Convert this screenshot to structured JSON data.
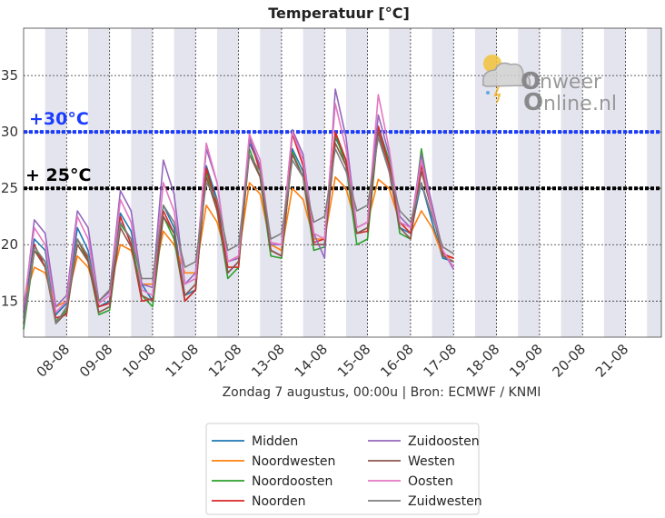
{
  "chart_data": {
    "type": "line",
    "title": "Temperatuur [°C]",
    "xlabel": "Zondag 7 augustus, 00:00u  | Bron: ECMWF / KNMI",
    "ylabel": "",
    "ylim": [
      11.8,
      39.2
    ],
    "yticks": [
      15,
      20,
      25,
      30,
      35
    ],
    "ytick_labels": [
      "15",
      "20",
      "25",
      "30",
      "35"
    ],
    "xticks": [
      "08-08",
      "09-08",
      "10-08",
      "11-08",
      "12-08",
      "13-08",
      "14-08",
      "15-08",
      "16-08",
      "17-08",
      "18-08",
      "19-08",
      "20-08",
      "21-08"
    ],
    "grid": true,
    "legend_position": "bottom-center",
    "thresholds": [
      {
        "value": 30,
        "label": "+30°C",
        "color": "#1a3cff"
      },
      {
        "value": 25,
        "label": "+ 25°C",
        "color": "#000000"
      }
    ],
    "hours": [
      0,
      6,
      12,
      18,
      24,
      30,
      36,
      42,
      48,
      54,
      60,
      66,
      72,
      78,
      84,
      90,
      96,
      102,
      108,
      114,
      120,
      126,
      132,
      138,
      144,
      150,
      156,
      162,
      168,
      174,
      180,
      186,
      192,
      198,
      204,
      210,
      216,
      222,
      228,
      234,
      240
    ],
    "series": [
      {
        "name": "Midden",
        "color": "#1f77b4",
        "values": [
          13.5,
          20.5,
          19.5,
          13.8,
          14.8,
          21.5,
          19.5,
          14.5,
          15.0,
          22.8,
          21.2,
          16.5,
          15.0,
          23.5,
          21.5,
          15.5,
          16.0,
          27.0,
          24.0,
          17.5,
          18.5,
          29.0,
          27.0,
          19.5,
          19.0,
          28.5,
          26.5,
          20.0,
          20.0,
          29.5,
          27.5,
          21.0,
          21.5,
          30.5,
          27.5,
          21.5,
          21.0,
          25.5,
          22.0,
          18.8,
          18.5
        ]
      },
      {
        "name": "Noordwesten",
        "color": "#ff7f0e",
        "values": [
          15.0,
          18.0,
          17.5,
          14.5,
          15.0,
          19.0,
          18.0,
          15.0,
          16.0,
          20.0,
          19.5,
          16.5,
          16.5,
          21.2,
          20.0,
          17.5,
          17.5,
          23.5,
          22.0,
          18.5,
          19.0,
          25.5,
          24.5,
          20.0,
          19.5,
          25.0,
          24.0,
          20.5,
          20.5,
          26.0,
          25.0,
          21.5,
          22.0,
          25.8,
          25.0,
          22.0,
          21.0,
          23.0,
          21.5,
          19.0,
          18.8
        ]
      },
      {
        "name": "Noordoosten",
        "color": "#2ca02c",
        "values": [
          12.5,
          19.5,
          18.5,
          13.2,
          14.2,
          20.5,
          18.5,
          13.8,
          14.2,
          21.8,
          20.5,
          15.5,
          14.5,
          22.5,
          20.5,
          15.0,
          16.0,
          26.5,
          23.0,
          17.0,
          18.0,
          28.5,
          26.0,
          19.0,
          18.8,
          28.2,
          26.0,
          19.5,
          19.8,
          29.8,
          27.0,
          20.0,
          20.5,
          30.3,
          27.5,
          21.0,
          20.5,
          28.5,
          23.0,
          19.0,
          18.5
        ]
      },
      {
        "name": "Noorden",
        "color": "#d62728",
        "values": [
          13.0,
          20.0,
          18.0,
          13.5,
          13.8,
          20.5,
          18.8,
          14.5,
          14.8,
          22.5,
          20.0,
          15.0,
          15.2,
          23.0,
          21.0,
          15.0,
          16.0,
          26.8,
          23.5,
          18.0,
          18.0,
          29.5,
          26.5,
          19.5,
          19.0,
          29.8,
          27.0,
          20.2,
          20.5,
          30.0,
          27.5,
          21.0,
          21.2,
          30.5,
          27.0,
          22.0,
          21.0,
          27.0,
          23.5,
          19.2,
          18.8
        ]
      },
      {
        "name": "Zuidoosten",
        "color": "#9467bd",
        "values": [
          14.0,
          22.2,
          21.0,
          14.5,
          15.5,
          23.0,
          21.5,
          15.0,
          15.8,
          24.8,
          23.0,
          16.5,
          16.2,
          27.5,
          24.5,
          16.5,
          17.5,
          28.5,
          25.5,
          18.5,
          18.8,
          29.5,
          27.0,
          20.0,
          20.0,
          30.2,
          28.0,
          21.0,
          18.8,
          33.8,
          29.5,
          21.5,
          22.0,
          31.5,
          28.0,
          22.5,
          21.5,
          28.0,
          23.5,
          19.5,
          17.8
        ]
      },
      {
        "name": "Westen",
        "color": "#8c564b",
        "values": [
          13.0,
          19.5,
          18.0,
          13.0,
          14.0,
          20.0,
          18.5,
          14.0,
          14.5,
          21.5,
          19.8,
          15.5,
          15.0,
          22.5,
          21.0,
          15.5,
          16.5,
          26.0,
          23.0,
          17.5,
          18.5,
          28.0,
          26.0,
          19.5,
          19.0,
          28.0,
          26.0,
          20.0,
          20.0,
          29.0,
          27.0,
          21.0,
          21.5,
          30.0,
          26.5,
          21.5,
          20.5,
          26.5,
          23.0,
          19.0,
          18.5
        ]
      },
      {
        "name": "Oosten",
        "color": "#e377c2",
        "values": [
          14.5,
          21.5,
          20.0,
          14.0,
          15.0,
          22.5,
          20.5,
          14.8,
          15.5,
          24.0,
          22.0,
          16.0,
          15.5,
          25.5,
          23.0,
          16.5,
          17.0,
          29.0,
          25.5,
          18.5,
          19.0,
          29.8,
          27.5,
          20.2,
          20.0,
          30.0,
          27.5,
          21.0,
          20.5,
          32.5,
          28.5,
          21.5,
          22.0,
          33.3,
          28.5,
          22.0,
          21.5,
          27.5,
          23.0,
          19.5,
          18.0
        ]
      },
      {
        "name": "Zuidwesten",
        "color": "#7f7f7f",
        "values": [
          13.0,
          19.8,
          18.5,
          13.0,
          14.5,
          20.5,
          19.0,
          15.0,
          16.0,
          22.0,
          20.5,
          17.0,
          17.0,
          23.5,
          22.0,
          18.0,
          18.5,
          25.5,
          24.0,
          19.5,
          20.0,
          28.0,
          26.5,
          20.5,
          21.0,
          27.5,
          26.0,
          22.0,
          22.5,
          28.5,
          26.5,
          23.0,
          23.5,
          29.5,
          26.5,
          23.0,
          22.0,
          25.5,
          22.5,
          19.8,
          19.2
        ]
      }
    ]
  },
  "logo": {
    "line1": "nweer",
    "line2": "nline",
    "suffix": ".nl"
  }
}
